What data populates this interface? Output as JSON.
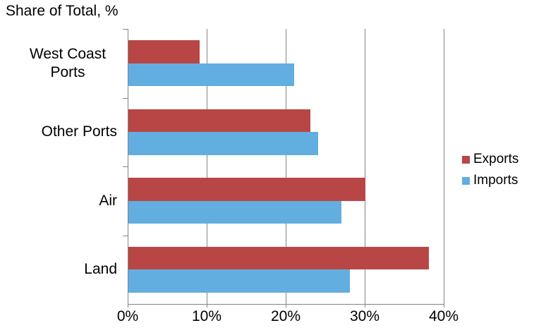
{
  "chart_data": {
    "type": "bar",
    "orientation": "horizontal",
    "title": "Share of Total, %",
    "categories": [
      "West Coast Ports",
      "Other Ports",
      "Air",
      "Land"
    ],
    "series": [
      {
        "name": "Exports",
        "color": "#B84645",
        "values": [
          9,
          23,
          30,
          38
        ]
      },
      {
        "name": "Imports",
        "color": "#62AEE0",
        "values": [
          21,
          24,
          27,
          28
        ]
      }
    ],
    "xlim": [
      0,
      40
    ],
    "x_ticks": [
      {
        "value": 0,
        "label": "0%"
      },
      {
        "value": 10,
        "label": "10%"
      },
      {
        "value": 20,
        "label": "20%"
      },
      {
        "value": 30,
        "label": "30%"
      },
      {
        "value": 40,
        "label": "40%"
      }
    ],
    "grid": "vertical-only",
    "legend_position": "right",
    "axis_color": "#848484",
    "gridline_color": "#848484",
    "background_color": "#FFFFFF"
  }
}
